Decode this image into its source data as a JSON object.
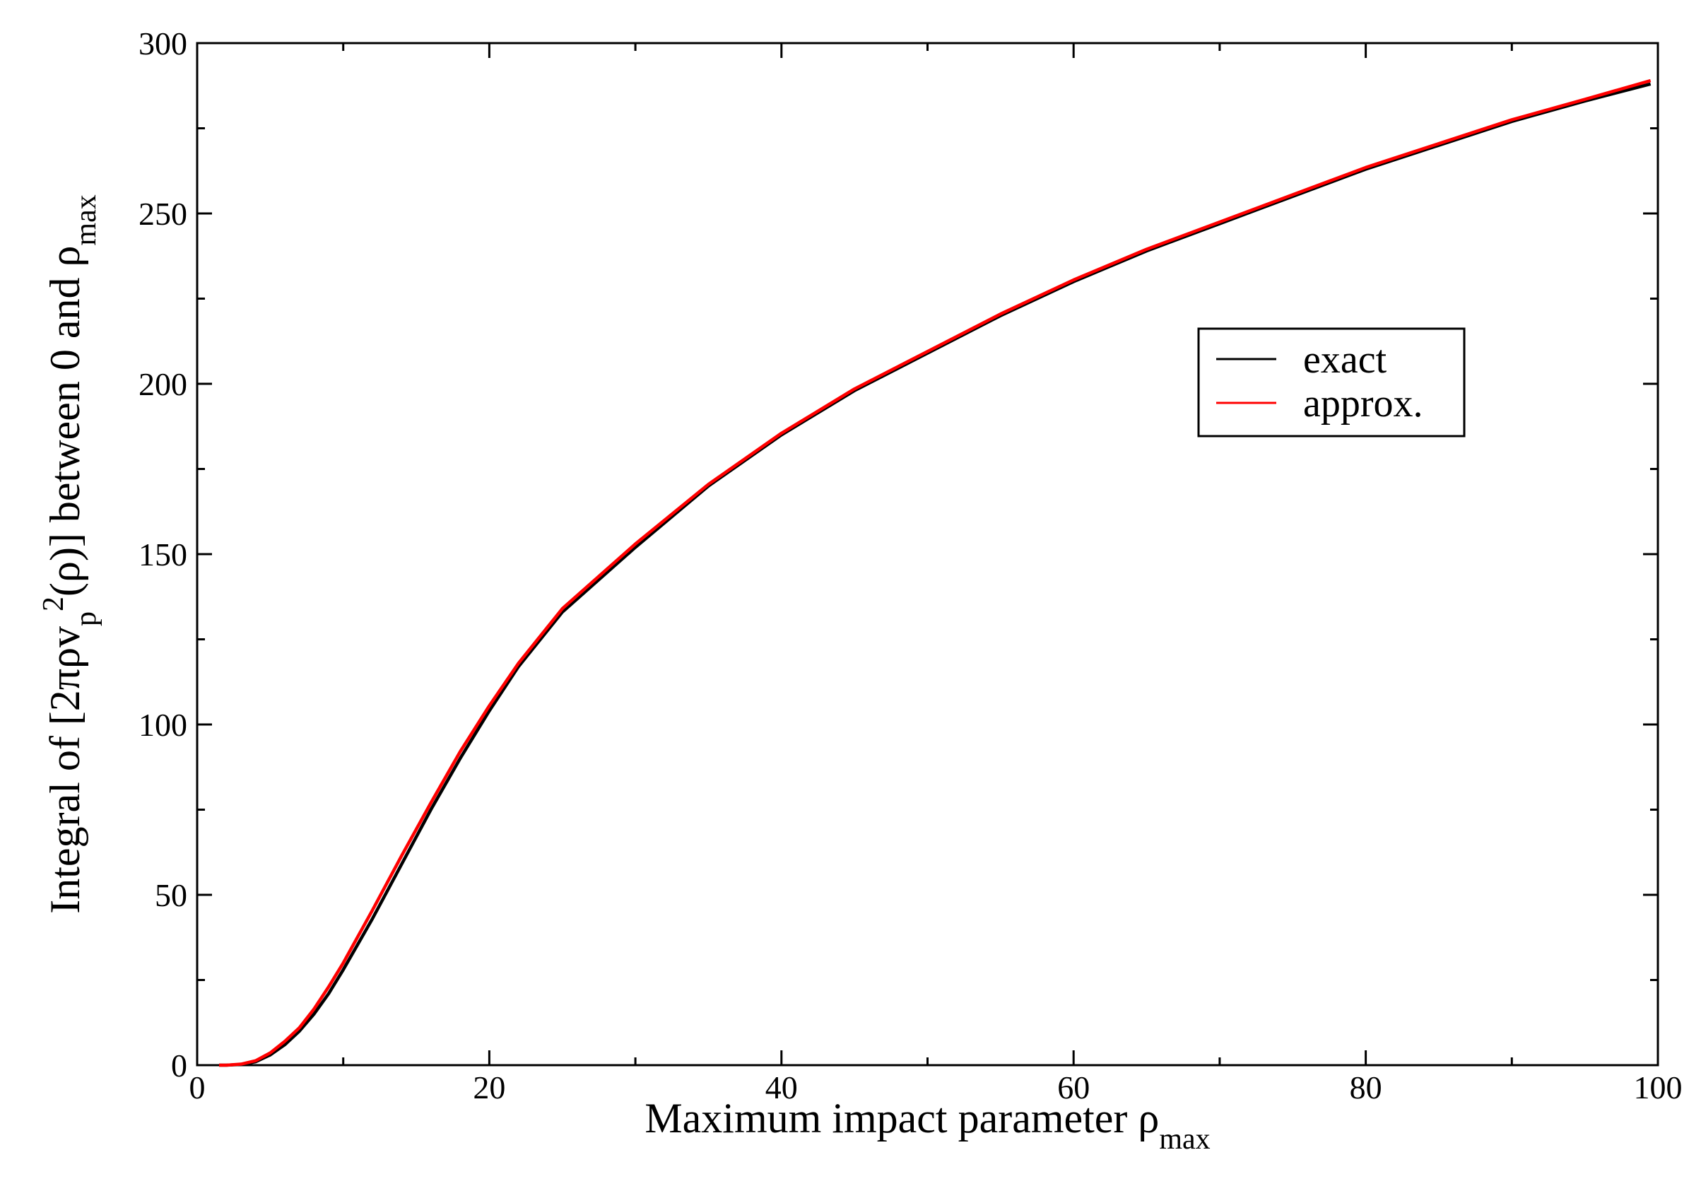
{
  "chart_data": {
    "type": "line",
    "x_label": [
      {
        "text": "Maximum impact parameter ρ"
      },
      {
        "text": "max",
        "shift": "sub"
      }
    ],
    "y_label": [
      {
        "text": "Integral of [2πρv"
      },
      {
        "text": "p",
        "shift": "sub"
      },
      {
        "text": "2",
        "shift": "super"
      },
      {
        "text": "(ρ)] between 0 and ρ"
      },
      {
        "text": "max",
        "shift": "sub"
      }
    ],
    "x": [
      1.5,
      2,
      3,
      4,
      5,
      6,
      7,
      8,
      9,
      10,
      12,
      14,
      16,
      18,
      20,
      22,
      25,
      30,
      35,
      40,
      45,
      50,
      55,
      60,
      65,
      70,
      75,
      80,
      85,
      90,
      95,
      99.5
    ],
    "series": [
      {
        "name": "exact",
        "color": "#000000",
        "values": [
          0,
          0,
          0.2,
          1,
          3,
          6,
          10,
          15,
          21,
          28,
          43,
          59,
          75,
          90,
          104,
          117,
          133,
          152,
          170,
          185,
          198,
          209,
          220,
          230,
          239,
          247,
          255,
          263,
          270,
          277,
          283,
          288
        ]
      },
      {
        "name": "approx.",
        "color": "#ff0000",
        "values": [
          0,
          0,
          0.3,
          1.3,
          3.6,
          7,
          11,
          16.5,
          23,
          30,
          45.5,
          61.5,
          77,
          92,
          105.5,
          118,
          134,
          153,
          170.5,
          185.5,
          198.5,
          209.5,
          220.5,
          230.5,
          239.5,
          247.5,
          255.5,
          263.5,
          270.5,
          277.5,
          283.5,
          289
        ]
      }
    ],
    "xlim": [
      0,
      100
    ],
    "ylim": [
      0,
      300
    ],
    "xticks": [
      0,
      20,
      40,
      60,
      80,
      100
    ],
    "yticks": [
      0,
      50,
      100,
      150,
      200,
      250,
      300
    ],
    "xminorticks": [
      10,
      30,
      50,
      70,
      90
    ],
    "yminorticks": [
      25,
      75,
      125,
      175,
      225,
      275
    ],
    "grid": false
  }
}
